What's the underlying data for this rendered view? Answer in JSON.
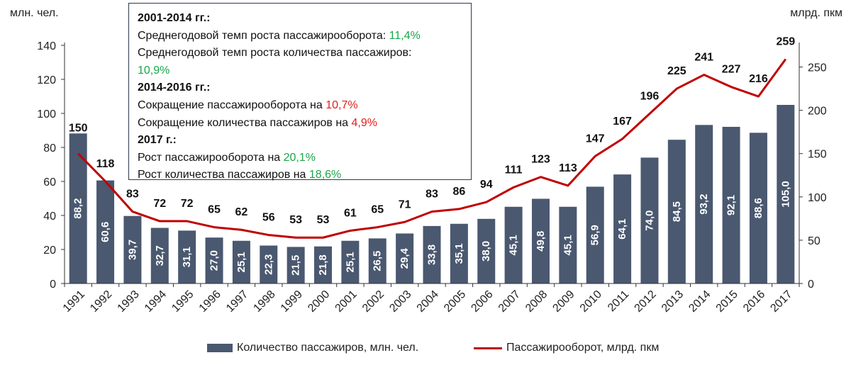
{
  "units": {
    "left": "млн. чел.",
    "right": "млрд. пкм"
  },
  "note": {
    "section1_title": "2001-2014 гг.:",
    "line1_text": "Среднегодовой темп роста пассажирооборота: ",
    "line1_value": "11,4%",
    "line2_text": "Среднегодовой темп роста количества пассажиров:",
    "line2_value": "10,9%",
    "section2_title": "2014-2016 гг.:",
    "line3_text": "Сокращение пассажирооборота на ",
    "line3_value": "10,7%",
    "line4_text": "Сокращение количества пассажиров на ",
    "line4_value": "4,9%",
    "section3_title": "2017 г.:",
    "line5_text": "Рост пассажирооборота на ",
    "line5_value": "20,1%",
    "line6_text": "Рост количества пассажиров на ",
    "line6_value": "18,6%"
  },
  "legend": {
    "bar_label": "Количество пассажиров, млн. чел.",
    "line_label": "Пассажирооборот, млрд. пкм"
  },
  "colors": {
    "bar": "#4a5870",
    "line": "#c00000",
    "positive": "#1aa64a",
    "negative": "#e01e1e"
  },
  "chart_data": {
    "type": "bar",
    "categories": [
      "1991",
      "1992",
      "1993",
      "1994",
      "1995",
      "1996",
      "1997",
      "1998",
      "1999",
      "2000",
      "2001",
      "2002",
      "2003",
      "2004",
      "2005",
      "2006",
      "2007",
      "2008",
      "2009",
      "2010",
      "2011",
      "2012",
      "2013",
      "2014",
      "2015",
      "2016",
      "2017"
    ],
    "series": [
      {
        "name": "Количество пассажиров, млн. чел.",
        "type": "bar",
        "axis": "left",
        "values": [
          88.2,
          60.6,
          39.7,
          32.7,
          31.1,
          27.0,
          25.1,
          22.3,
          21.5,
          21.8,
          25.1,
          26.5,
          29.4,
          33.8,
          35.1,
          38.0,
          45.1,
          49.8,
          45.1,
          56.9,
          64.1,
          74.0,
          84.5,
          93.2,
          92.1,
          88.6,
          105.0
        ],
        "labels": [
          "88,2",
          "60,6",
          "39,7",
          "32,7",
          "31,1",
          "27,0",
          "25,1",
          "22,3",
          "21,5",
          "21,8",
          "25,1",
          "26,5",
          "29,4",
          "33,8",
          "35,1",
          "38,0",
          "45,1",
          "49,8",
          "45,1",
          "56,9",
          "64,1",
          "74,0",
          "84,5",
          "93,2",
          "92,1",
          "88,6",
          "105,0"
        ]
      },
      {
        "name": "Пассажирооборот, млрд. пкм",
        "type": "line",
        "axis": "right",
        "values": [
          150,
          118,
          83,
          72,
          72,
          65,
          62,
          56,
          53,
          53,
          61,
          65,
          71,
          83,
          86,
          94,
          111,
          123,
          113,
          147,
          167,
          196,
          225,
          241,
          227,
          216,
          259
        ]
      }
    ],
    "y_left": {
      "label": "млн. чел.",
      "ylim": [
        0,
        140
      ],
      "ticks": [
        0,
        20,
        40,
        60,
        80,
        100,
        120,
        140
      ]
    },
    "y_right": {
      "label": "млрд. пкм",
      "ylim": [
        0,
        275
      ],
      "ticks": [
        0,
        50,
        100,
        150,
        200,
        250
      ]
    },
    "grid": false,
    "legend_position": "bottom"
  }
}
